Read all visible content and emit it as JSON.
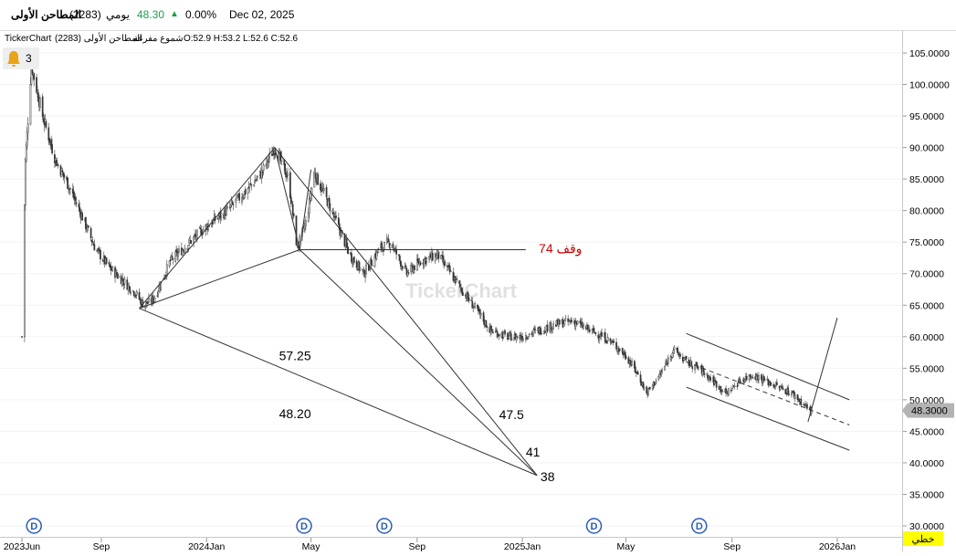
{
  "header": {
    "stock_name": "المطاحن الأولى",
    "stock_code": "(2283)",
    "period": "يومي",
    "last_price": "48.30",
    "change_pct": "0.00%",
    "date": "Dec 02, 2025",
    "up_color": "#1aa04a"
  },
  "chart_info": {
    "brand": "TickerChart",
    "title": "المطاحن الأولى (2283)",
    "chart_style": "شموع مفرغة",
    "ohlc": "O:52.9  H:53.2  L:52.6  C:52.6",
    "alerts_count": "3",
    "watermark": "TickerChart"
  },
  "footer": {
    "style_label": "خطي",
    "style_bg": "#ffff00"
  },
  "chart_data": {
    "type": "candlestick",
    "y_range": [
      28.5,
      108
    ],
    "y_ticks": [
      30,
      35,
      40,
      45,
      50,
      55,
      60,
      65,
      70,
      75,
      80,
      85,
      90,
      95,
      100,
      105
    ],
    "y_tick_labels": [
      "30.0000",
      "35.0000",
      "40.0000",
      "45.0000",
      "50.0000",
      "55.0000",
      "60.0000",
      "65.0000",
      "70.0000",
      "75.0000",
      "80.0000",
      "85.0000",
      "90.0000",
      "95.0000",
      "100.0000",
      "105.0000"
    ],
    "x_ticks": [
      "2023-06-01",
      "2023-09-01",
      "2024-01-01",
      "2024-05-01",
      "2024-09-01",
      "2025-01-01",
      "2025-05-01",
      "2025-09-01",
      "2026-01-01"
    ],
    "x_tick_labels": [
      "2023Jun",
      "Sep",
      "2024Jan",
      "May",
      "Sep",
      "2025Jan",
      "May",
      "Sep",
      "2026Jan"
    ],
    "last_value": 48.3,
    "last_value_label": "48.3000",
    "dividend_marker_dates": [
      "2023-06-15",
      "2024-04-23",
      "2024-07-25",
      "2025-03-25",
      "2025-07-25"
    ],
    "dividend_marker_label": "D",
    "price_path": [
      [
        "2023-06-01",
        60
      ],
      [
        "2023-06-05",
        88
      ],
      [
        "2023-06-12",
        103
      ],
      [
        "2023-06-25",
        95
      ],
      [
        "2023-07-10",
        88
      ],
      [
        "2023-07-25",
        84
      ],
      [
        "2023-08-10",
        79
      ],
      [
        "2023-08-25",
        74
      ],
      [
        "2023-09-10",
        71
      ],
      [
        "2023-09-25",
        69
      ],
      [
        "2023-10-10",
        67
      ],
      [
        "2023-10-20",
        65
      ],
      [
        "2023-11-01",
        66
      ],
      [
        "2023-11-20",
        72
      ],
      [
        "2023-12-05",
        74
      ],
      [
        "2023-12-20",
        76
      ],
      [
        "2024-01-05",
        78
      ],
      [
        "2024-01-25",
        80
      ],
      [
        "2024-02-15",
        83
      ],
      [
        "2024-03-05",
        86
      ],
      [
        "2024-03-20",
        90
      ],
      [
        "2024-04-05",
        85
      ],
      [
        "2024-04-15",
        74
      ],
      [
        "2024-04-25",
        78
      ],
      [
        "2024-05-05",
        86
      ],
      [
        "2024-05-25",
        80
      ],
      [
        "2024-06-15",
        73
      ],
      [
        "2024-07-01",
        70
      ],
      [
        "2024-07-20",
        74
      ],
      [
        "2024-08-01",
        75
      ],
      [
        "2024-08-20",
        70
      ],
      [
        "2024-09-05",
        72
      ],
      [
        "2024-09-25",
        73
      ],
      [
        "2024-10-10",
        70
      ],
      [
        "2024-10-25",
        67
      ],
      [
        "2024-11-10",
        64
      ],
      [
        "2024-11-25",
        61
      ],
      [
        "2024-12-15",
        60
      ],
      [
        "2025-01-01",
        60
      ],
      [
        "2025-01-20",
        61
      ],
      [
        "2025-02-10",
        62
      ],
      [
        "2025-03-01",
        62.5
      ],
      [
        "2025-03-20",
        61
      ],
      [
        "2025-04-05",
        60
      ],
      [
        "2025-04-15",
        59
      ],
      [
        "2025-05-01",
        57
      ],
      [
        "2025-05-15",
        54
      ],
      [
        "2025-05-25",
        51
      ],
      [
        "2025-06-10",
        54
      ],
      [
        "2025-06-25",
        58
      ],
      [
        "2025-07-10",
        56
      ],
      [
        "2025-07-25",
        55
      ],
      [
        "2025-08-10",
        53
      ],
      [
        "2025-08-25",
        51
      ],
      [
        "2025-09-10",
        53
      ],
      [
        "2025-09-25",
        54
      ],
      [
        "2025-10-10",
        53
      ],
      [
        "2025-10-25",
        52
      ],
      [
        "2025-11-10",
        51
      ],
      [
        "2025-11-25",
        49
      ],
      [
        "2025-12-02",
        48.3
      ]
    ],
    "drawings": {
      "lines": [
        {
          "from": [
            "2023-10-15",
            64.5
          ],
          "to": [
            "2024-03-20",
            90
          ]
        },
        {
          "from": [
            "2023-10-15",
            64.5
          ],
          "to": [
            "2024-04-18",
            73.8
          ]
        },
        {
          "from": [
            "2024-03-20",
            90
          ],
          "to": [
            "2024-04-18",
            73.8
          ]
        },
        {
          "from": [
            "2024-04-18",
            73.8
          ],
          "to": [
            "2024-05-01",
            86.5
          ]
        },
        {
          "from": [
            "2024-04-18",
            73.8
          ],
          "to": [
            "2025-01-05",
            73.8
          ]
        },
        {
          "from": [
            "2023-10-15",
            64.5
          ],
          "to": [
            "2025-01-18",
            38
          ]
        },
        {
          "from": [
            "2024-03-20",
            90
          ],
          "to": [
            "2025-01-18",
            38
          ]
        },
        {
          "from": [
            "2024-04-18",
            73.8
          ],
          "to": [
            "2025-01-18",
            38
          ]
        },
        {
          "from": [
            "2025-07-10",
            60.5
          ],
          "to": [
            "2026-01-15",
            50
          ]
        },
        {
          "from": [
            "2025-07-10",
            52
          ],
          "to": [
            "2026-01-15",
            42
          ]
        },
        {
          "from": [
            "2025-11-28",
            46.5
          ],
          "to": [
            "2026-01-01",
            63
          ]
        }
      ],
      "dashed_lines": [
        {
          "from": [
            "2025-07-10",
            56
          ],
          "to": [
            "2026-01-15",
            46
          ]
        }
      ],
      "labels": [
        {
          "text": "وقف 74",
          "at": [
            "2025-01-20",
            74
          ],
          "color": "#cc0000"
        },
        {
          "text": "57.25",
          "at": [
            "2024-03-25",
            57
          ],
          "color": "#000000"
        },
        {
          "text": "48.20",
          "at": [
            "2024-03-25",
            47.8
          ],
          "color": "#000000"
        },
        {
          "text": "47.5",
          "at": [
            "2024-12-05",
            47.7
          ],
          "color": "#000000"
        },
        {
          "text": "41",
          "at": [
            "2025-01-05",
            41.7
          ],
          "color": "#000000"
        },
        {
          "text": "38",
          "at": [
            "2025-01-22",
            37.8
          ],
          "color": "#000000"
        }
      ]
    }
  }
}
